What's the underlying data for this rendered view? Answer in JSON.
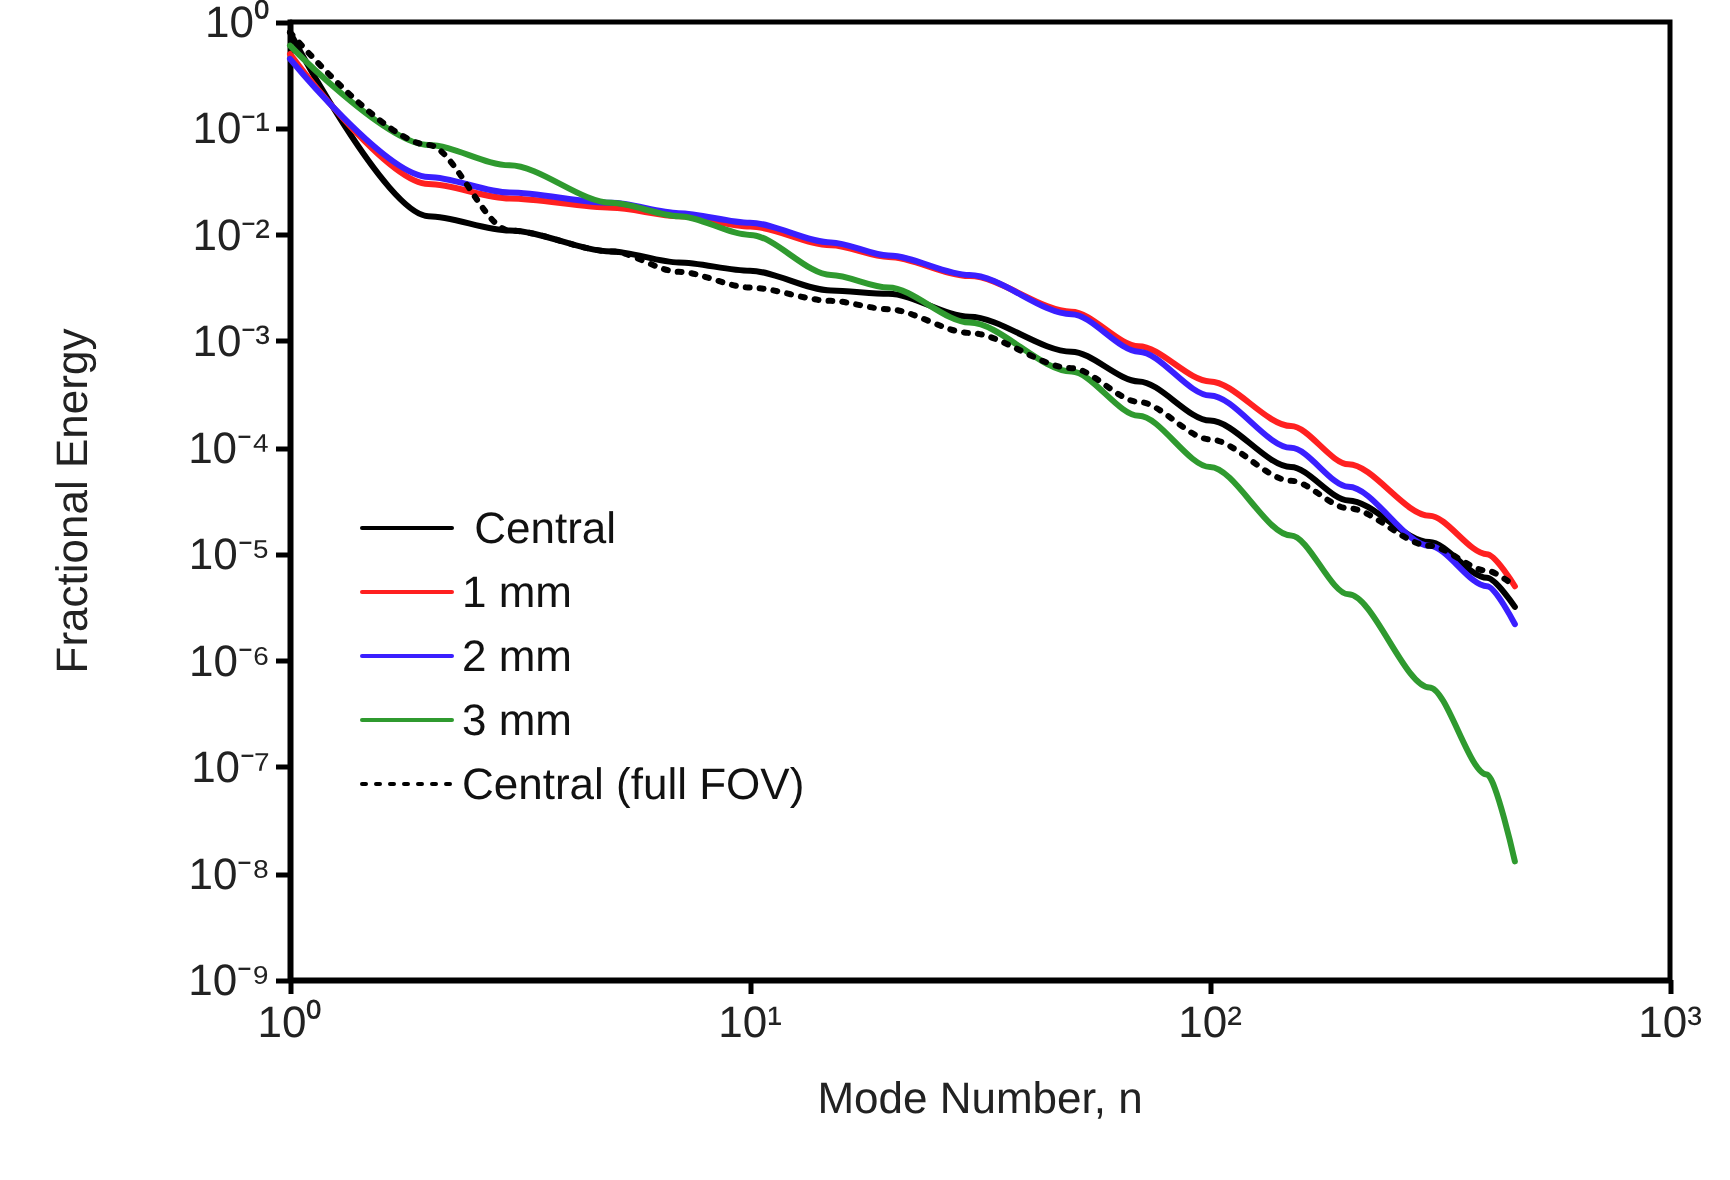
{
  "chart_data": {
    "type": "line",
    "xlabel": "Mode Number, n",
    "ylabel": "Fractional Energy",
    "log": "xy",
    "grid": false,
    "legend": "bottom left",
    "marker": "none",
    "x": [
      1,
      2,
      3,
      5,
      7,
      10,
      15,
      20,
      30,
      50,
      70,
      100,
      150,
      200,
      300,
      400,
      460
    ],
    "xlim": [
      1,
      1000
    ],
    "xticks": [
      {
        "value": 1,
        "label": "10⁰"
      },
      {
        "value": 10,
        "label": "10¹"
      },
      {
        "value": 100,
        "label": "10²"
      },
      {
        "value": 1000,
        "label": "10³"
      }
    ],
    "ylim": [
      1e-09,
      1
    ],
    "yticks": [
      {
        "value": 1e-09,
        "label": "10⁻⁹"
      },
      {
        "value": 1e-08,
        "label": "10⁻⁸"
      },
      {
        "value": 1e-07,
        "label": "10⁻⁷"
      },
      {
        "value": 1e-06,
        "label": "10⁻⁶"
      },
      {
        "value": 1e-05,
        "label": "10⁻⁵"
      },
      {
        "value": 0.0001,
        "label": "10⁻⁴"
      },
      {
        "value": 0.001,
        "label": "10⁻³"
      },
      {
        "value": 0.01,
        "label": "10⁻²"
      },
      {
        "value": 0.1,
        "label": "10⁻¹"
      },
      {
        "value": 1,
        "label": "10⁰"
      }
    ],
    "series": [
      {
        "name": " Central",
        "color": "#000000",
        "line_style": "solid",
        "values": [
          0.8,
          0.015,
          0.011,
          0.007,
          0.0055,
          0.0046,
          0.003,
          0.0028,
          0.0017,
          0.0008,
          0.00042,
          0.00018,
          6.6e-05,
          3.2e-05,
          1.3e-05,
          6e-06,
          3.2e-06
        ]
      },
      {
        "name": "1 mm",
        "color": "#ff2020",
        "line_style": "solid",
        "values": [
          0.5,
          0.03,
          0.022,
          0.018,
          0.015,
          0.012,
          0.008,
          0.0062,
          0.0041,
          0.0019,
          0.0009,
          0.00042,
          0.00016,
          7e-05,
          2.3e-05,
          1e-05,
          5e-06
        ]
      },
      {
        "name": "2 mm",
        "color": "#3a1fff",
        "line_style": "solid",
        "values": [
          0.45,
          0.035,
          0.025,
          0.02,
          0.016,
          0.013,
          0.0085,
          0.0064,
          0.0042,
          0.0018,
          0.0008,
          0.00031,
          0.0001,
          4.3e-05,
          1.2e-05,
          5e-06,
          2.2e-06
        ]
      },
      {
        "name": "3 mm",
        "color": "#2f9a2f",
        "line_style": "solid",
        "values": [
          0.6,
          0.07,
          0.045,
          0.02,
          0.015,
          0.01,
          0.0042,
          0.0032,
          0.0015,
          0.00052,
          0.0002,
          6.6e-05,
          1.5e-05,
          4.2e-06,
          5.6e-07,
          8.5e-08,
          1.3e-08
        ]
      },
      {
        "name": "Central (full FOV)",
        "color": "#000000",
        "line_style": "dotted",
        "values": [
          0.8,
          0.07,
          0.011,
          0.007,
          0.0045,
          0.0032,
          0.0024,
          0.002,
          0.0012,
          0.00056,
          0.00027,
          0.00012,
          4.9e-05,
          2.7e-05,
          1.2e-05,
          7e-06,
          5e-06
        ]
      }
    ]
  }
}
